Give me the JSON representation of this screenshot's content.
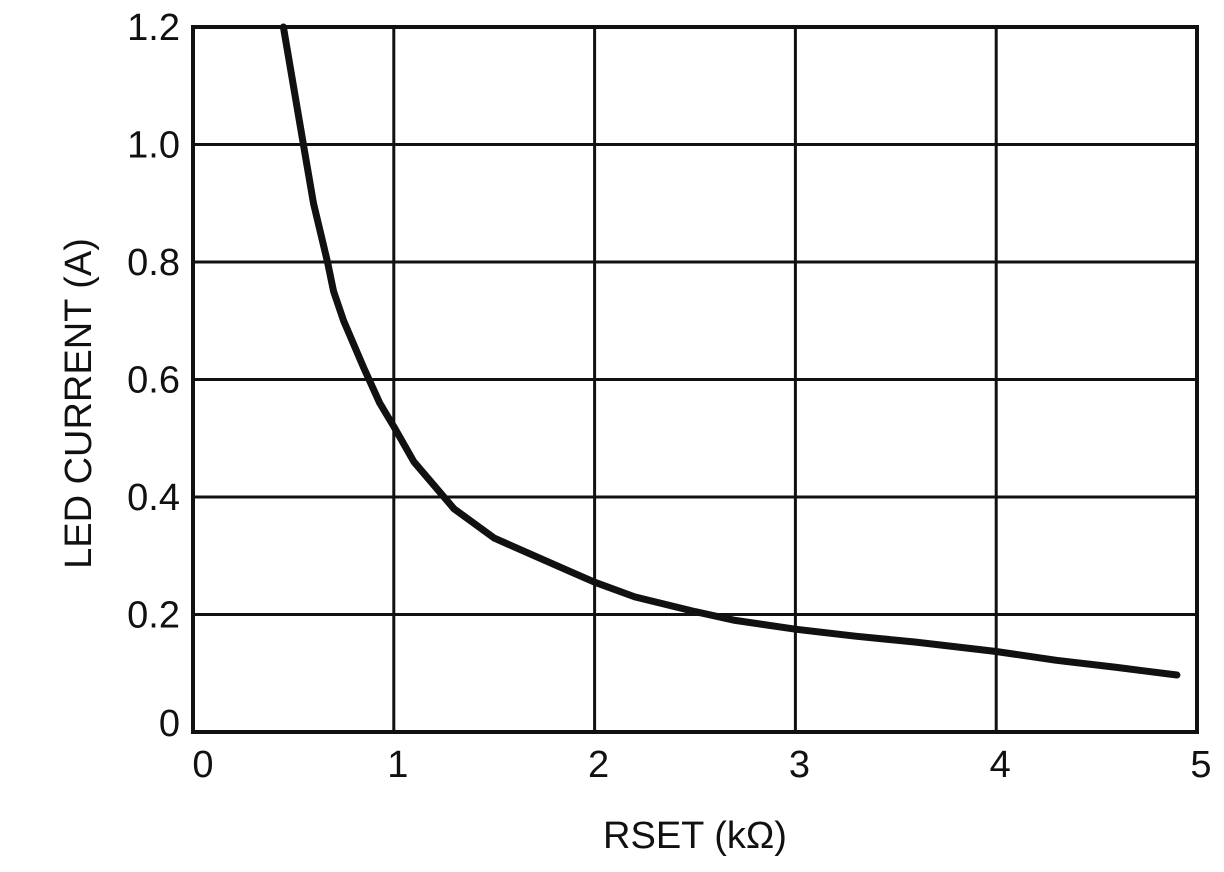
{
  "chart_data": {
    "type": "line",
    "title": "",
    "xlabel": "RSET (kΩ)",
    "ylabel": "LED CURRENT (A)",
    "xlim": [
      0,
      5
    ],
    "ylim": [
      0,
      1.2
    ],
    "grid": true,
    "x_ticks": [
      0,
      1,
      2,
      3,
      4,
      5
    ],
    "x_tick_labels": [
      "0",
      "1",
      "2",
      "3",
      "4",
      "5"
    ],
    "y_ticks": [
      0,
      0.2,
      0.4,
      0.6,
      0.8,
      1.0,
      1.2
    ],
    "y_tick_labels": [
      "0",
      "0.2",
      "0.4",
      "0.6",
      "0.8",
      "1.0",
      "1.2"
    ],
    "series": [
      {
        "color": "#111111",
        "x": [
          0.45,
          0.55,
          0.6,
          0.67,
          0.7,
          0.75,
          0.85,
          0.93,
          1.0,
          1.1,
          1.2,
          1.3,
          1.5,
          1.7,
          1.9,
          2.0,
          2.2,
          2.5,
          2.7,
          3.0,
          3.3,
          3.6,
          4.0,
          4.3,
          4.6,
          4.9
        ],
        "y": [
          1.2,
          1.0,
          0.9,
          0.8,
          0.75,
          0.7,
          0.62,
          0.56,
          0.52,
          0.46,
          0.42,
          0.38,
          0.33,
          0.3,
          0.27,
          0.255,
          0.23,
          0.205,
          0.19,
          0.175,
          0.163,
          0.153,
          0.137,
          0.122,
          0.11,
          0.097
        ]
      }
    ]
  }
}
